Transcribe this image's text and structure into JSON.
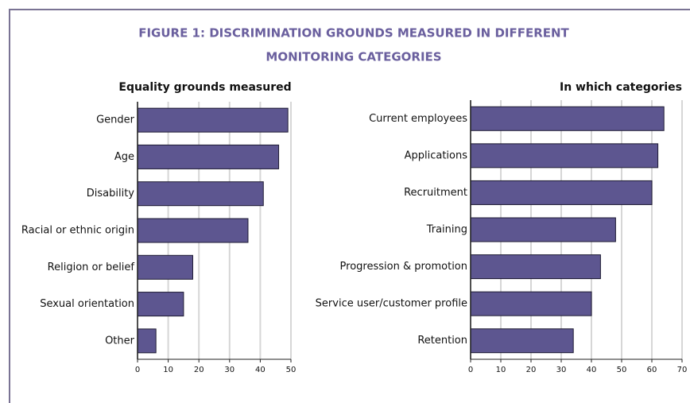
{
  "title": [
    "FIGURE 1: DISCRIMINATION GROUNDS MEASURED IN DIFFERENT",
    "MONITORING  CATEGORIES"
  ],
  "chart_data": [
    {
      "type": "barh",
      "title": "Equality grounds measured",
      "categories": [
        "Gender",
        "Age",
        "Disability",
        "Racial or ethnic origin",
        "Religion or belief",
        "Sexual orientation",
        "Other"
      ],
      "values": [
        49,
        46,
        41,
        36,
        18,
        15,
        6
      ],
      "color": "#5d5690",
      "xlim": [
        0,
        50
      ],
      "xticks": [
        0,
        10,
        20,
        30,
        40,
        50
      ],
      "grid": true
    },
    {
      "type": "barh",
      "title": "In which categories",
      "categories": [
        "Current employees",
        "Applications",
        "Recruitment",
        "Training",
        "Progression & promotion",
        "Service user/customer profile",
        "Retention"
      ],
      "values": [
        64,
        62,
        60,
        48,
        43,
        40,
        34
      ],
      "color": "#5d5690",
      "xlim": [
        0,
        70
      ],
      "xticks": [
        0,
        10,
        20,
        30,
        40,
        50,
        60,
        70
      ],
      "grid": true
    }
  ]
}
